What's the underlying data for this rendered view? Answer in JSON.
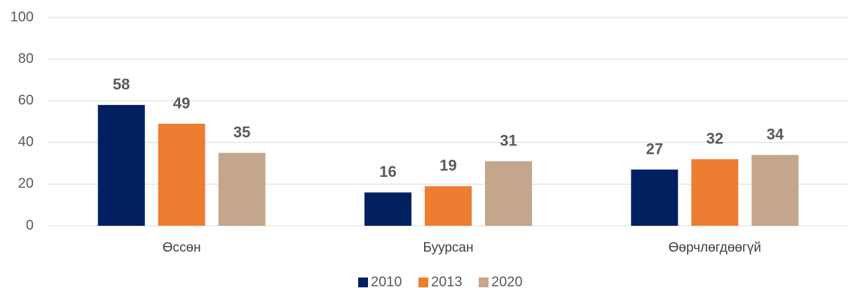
{
  "chart_data": {
    "type": "bar",
    "categories": [
      "Өссөн",
      "Буурсан",
      "Өөрчлөгдөөгүй"
    ],
    "series": [
      {
        "name": "2010",
        "color": "#002060",
        "values": [
          58,
          16,
          27
        ]
      },
      {
        "name": "2013",
        "color": "#ed7d31",
        "values": [
          49,
          19,
          32
        ]
      },
      {
        "name": "2020",
        "color": "#c4a68c",
        "values": [
          35,
          31,
          34
        ]
      }
    ],
    "ylim": [
      0,
      100
    ],
    "yticks": [
      0,
      20,
      40,
      60,
      80,
      100
    ],
    "grid": true,
    "legend": "bottom"
  }
}
